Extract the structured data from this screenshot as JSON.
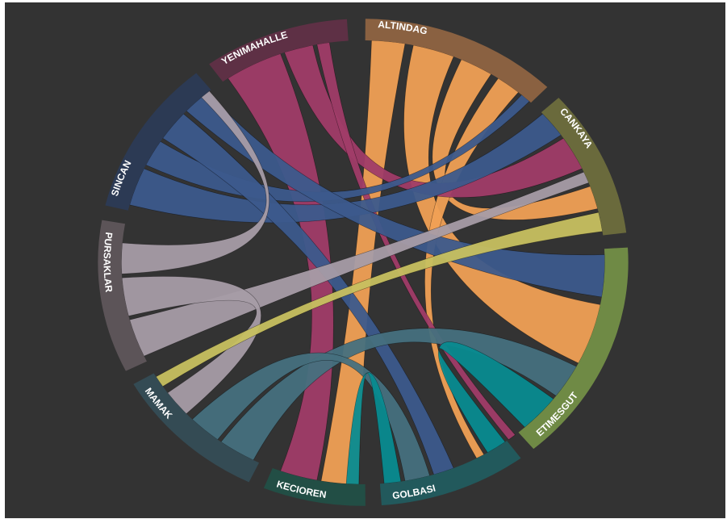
{
  "diagram": {
    "type": "chord",
    "segments": [
      {
        "name": "ALTINDAG",
        "color": "#8a6141",
        "ribbon": "#f0a055",
        "start": 0.5,
        "end": 44.0
      },
      {
        "name": "CANKAYA",
        "color": "#6a6a3c",
        "ribbon": "#c7c060",
        "start": 47.5,
        "end": 83.0
      },
      {
        "name": "ETIMESGUT",
        "color": "#6f8a45",
        "ribbon": "#b8e466",
        "start": 86.5,
        "end": 140.0
      },
      {
        "name": "GOLBASI",
        "color": "#22595c",
        "ribbon": "#088b90",
        "start": 143.5,
        "end": 176.0
      },
      {
        "name": "KECIOREN",
        "color": "#224e45",
        "ribbon": "#24735e",
        "start": 179.5,
        "end": 202.0
      },
      {
        "name": "MAMAK",
        "color": "#344b54",
        "ribbon": "#46707e",
        "start": 205.5,
        "end": 240.0
      },
      {
        "name": "PURSAKLAR",
        "color": "#5c5458",
        "ribbon": "#a79ca6",
        "start": 243.5,
        "end": 280.0
      },
      {
        "name": "SINCAN",
        "color": "#2c3a54",
        "ribbon": "#3c5a8c",
        "start": 283.5,
        "end": 321.0
      },
      {
        "name": "YENIMAHALLE",
        "color": "#5e3045",
        "ribbon": "#a03c68",
        "start": 324.5,
        "end": 356.5
      }
    ],
    "chords": [
      {
        "from": "ALTINDAG",
        "to": "KECIOREN",
        "a": [
          2,
          10
        ],
        "b": [
          181,
          190
        ]
      },
      {
        "from": "ALTINDAG",
        "to": "ETIMESGUT",
        "a": [
          12,
          22
        ],
        "b": [
          101,
          117
        ]
      },
      {
        "from": "ALTINDAG",
        "to": "CANKAYA",
        "a": [
          24,
          32
        ],
        "b": [
          70,
          76
        ]
      },
      {
        "from": "ALTINDAG",
        "to": "GOLBASI",
        "a": [
          34,
          40
        ],
        "b": [
          150,
          152
        ]
      },
      {
        "from": "YENIMAHALLE",
        "to": "KECIOREN",
        "a": [
          326,
          340
        ],
        "b": [
          191,
          200
        ]
      },
      {
        "from": "YENIMAHALLE",
        "to": "CANKAYA",
        "a": [
          341,
          348
        ],
        "b": [
          56,
          65
        ]
      },
      {
        "from": "YENIMAHALLE",
        "to": "GOLBASI",
        "a": [
          349,
          352
        ],
        "b": [
          141,
          143
        ]
      },
      {
        "from": "SINCAN",
        "to": "CANKAYA",
        "a": [
          285,
          295
        ],
        "b": [
          48,
          55
        ]
      },
      {
        "from": "SINCAN",
        "to": "ALTINDAG",
        "a": [
          296,
          303
        ],
        "b": [
          41,
          43.5
        ]
      },
      {
        "from": "SINCAN",
        "to": "GOLBASI",
        "a": [
          304,
          312
        ],
        "b": [
          158,
          163
        ]
      },
      {
        "from": "SINCAN",
        "to": "ETIMESGUT",
        "a": [
          313,
          320
        ],
        "b": [
          88,
          99
        ]
      },
      {
        "from": "PURSAKLAR",
        "to": "CANKAYA",
        "a": [
          245,
          255
        ],
        "b": [
          66,
          69
        ]
      },
      {
        "from": "PURSAKLAR",
        "to": "MAMAK",
        "a": [
          256,
          266
        ],
        "b": [
          227,
          234
        ]
      },
      {
        "from": "PURSAKLAR",
        "to": "SINCAN",
        "a": [
          267,
          275
        ],
        "b": [
          318,
          320.5
        ]
      },
      {
        "from": "MAMAK",
        "to": "ETIMESGUT",
        "a": [
          207,
          216
        ],
        "b": [
          118,
          127
        ]
      },
      {
        "from": "MAMAK",
        "to": "GOLBASI",
        "a": [
          217,
          225
        ],
        "b": [
          164,
          170
        ]
      },
      {
        "from": "GOLBASI",
        "to": "ETIMESGUT",
        "a": [
          144,
          149
        ],
        "b": [
          128,
          138
        ]
      },
      {
        "from": "GOLBASI",
        "to": "KECIOREN",
        "a": [
          171,
          175
        ],
        "b": [
          181,
          184
        ]
      },
      {
        "from": "CANKAYA",
        "to": "MAMAK",
        "a": [
          77,
          82
        ],
        "b": [
          236,
          239
        ]
      }
    ]
  }
}
